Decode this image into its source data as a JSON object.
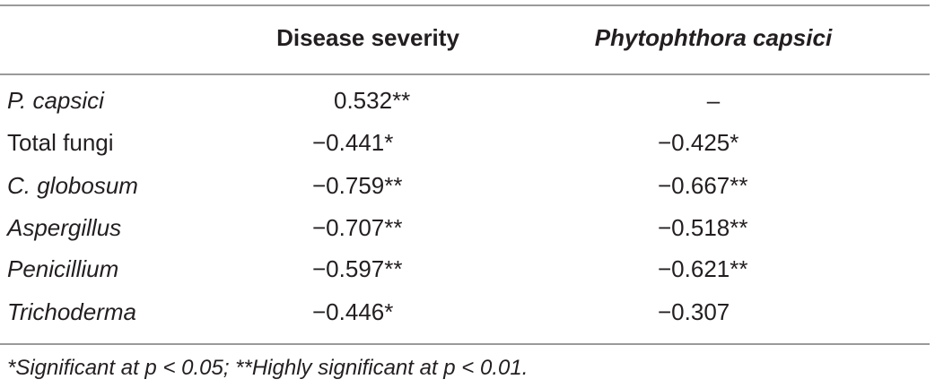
{
  "table": {
    "columns": [
      "Disease severity",
      "Phytophthora capsici"
    ],
    "rows": [
      {
        "label": "P. capsici",
        "values": [
          "0.532**",
          "–"
        ]
      },
      {
        "label": "Total fungi",
        "values": [
          "−0.441*",
          "−0.425*"
        ]
      },
      {
        "label": "C. globosum",
        "values": [
          "−0.759**",
          "−0.667**"
        ]
      },
      {
        "label": "Aspergillus",
        "values": [
          "−0.707**",
          "−0.518**"
        ]
      },
      {
        "label": "Penicillium",
        "values": [
          "−0.597**",
          "−0.621**"
        ]
      },
      {
        "label": "Trichoderma",
        "values": [
          "−0.446*",
          "−0.307"
        ]
      }
    ],
    "footnote": "*Significant at p < 0.05; **Highly significant at p < 0.01."
  }
}
